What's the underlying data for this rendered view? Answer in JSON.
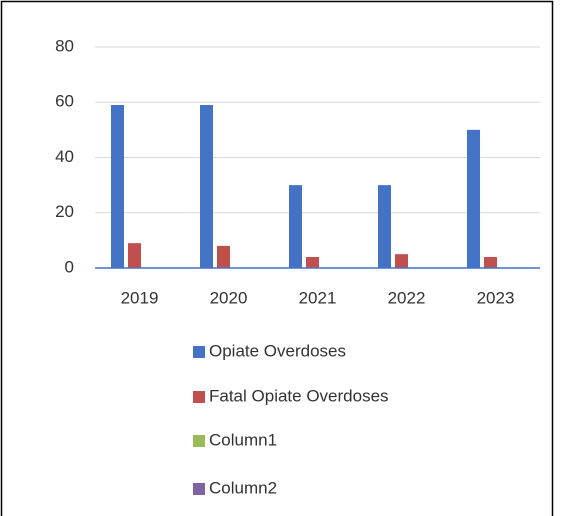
{
  "chart_data": {
    "type": "bar",
    "categories": [
      "2019",
      "2020",
      "2021",
      "2022",
      "2023"
    ],
    "series": [
      {
        "name": "Opiate Overdoses",
        "color": "#4472c4",
        "values": [
          59,
          59,
          30,
          30,
          50
        ]
      },
      {
        "name": "Fatal Opiate Overdoses",
        "color": "#c0504d",
        "values": [
          9,
          8,
          4,
          5,
          4
        ]
      },
      {
        "name": "Column1",
        "color": "#9bbb59",
        "values": [
          null,
          null,
          null,
          null,
          null
        ]
      },
      {
        "name": "Column2",
        "color": "#8064a2",
        "values": [
          null,
          null,
          null,
          null,
          null
        ]
      }
    ],
    "ylim": [
      0,
      80
    ],
    "yticks": [
      0,
      20,
      40,
      60,
      80
    ],
    "grid": true,
    "legend": "bottom"
  }
}
